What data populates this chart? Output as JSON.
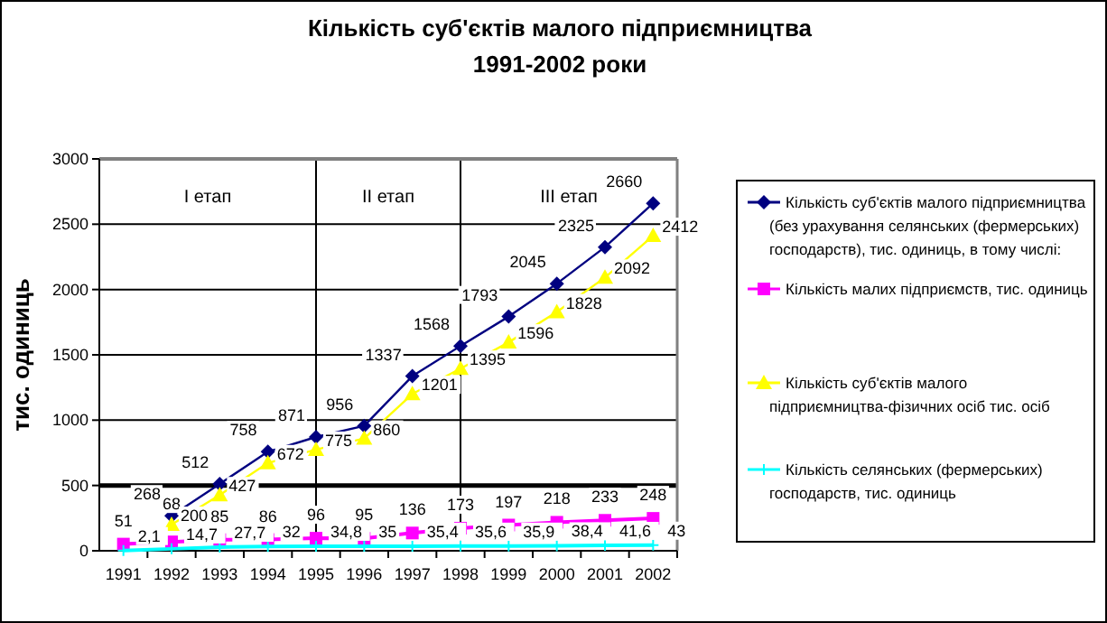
{
  "chart_data": {
    "type": "line",
    "title": "Кількість суб'єктів малого підприємництва\n1991-2002 роки",
    "ylabel": "тис. одиниць",
    "categories": [
      "1991",
      "1992",
      "1993",
      "1994",
      "1995",
      "1996",
      "1997",
      "1998",
      "1999",
      "2000",
      "2001",
      "2002"
    ],
    "ylim": [
      0,
      3000
    ],
    "yticks": [
      0,
      500,
      1000,
      1500,
      2000,
      2500,
      3000
    ],
    "grid": "y",
    "legend": "right",
    "ref_lines": [
      {
        "axis": "y",
        "value": 500
      },
      {
        "axis": "x",
        "value": "1995"
      },
      {
        "axis": "x",
        "value": "1998"
      }
    ],
    "annotations": [
      "I етап",
      "II етап",
      "III етап"
    ],
    "series": [
      {
        "name": "Кількість суб'єктів малого підприємництва (без урахування селянських (фермерських) господарств), тис. одиниць, в тому числі:",
        "color": "#000080",
        "marker": "diamond",
        "values": [
          null,
          268,
          512,
          758,
          871,
          956,
          1337,
          1568,
          1793,
          2045,
          2325,
          2660
        ],
        "value_labels": [
          null,
          "268",
          "512",
          "758",
          "871",
          "956",
          "1337",
          "1568",
          "1793",
          "2045",
          "2325",
          "2660"
        ]
      },
      {
        "name": "Кількість малих підприємств, тис. одиниць",
        "color": "#ff00ff",
        "marker": "square",
        "values": [
          51,
          68,
          85,
          86,
          96,
          95,
          136,
          173,
          197,
          218,
          233,
          248
        ],
        "value_labels": [
          "51",
          "68",
          "85",
          "86",
          "96",
          "95",
          "136",
          "173",
          "197",
          "218",
          "233",
          "248"
        ]
      },
      {
        "name": "Кількість суб'єктів малого підприємництва-фізичних осіб  тис. осіб",
        "color": "#ffff00",
        "marker": "triangle",
        "values": [
          null,
          200,
          427,
          672,
          775,
          860,
          1201,
          1395,
          1596,
          1828,
          2092,
          2412
        ],
        "value_labels": [
          null,
          "200",
          "427",
          "672",
          "775",
          "860",
          "1201",
          "1395",
          "1596",
          "1828",
          "2092",
          "2412"
        ]
      },
      {
        "name": "Кількість селянських (фермерських) господарств, тис. одиниць",
        "color": "#00ffff",
        "marker": "cross",
        "values": [
          2.1,
          14.7,
          27.7,
          32,
          34.8,
          35,
          35.4,
          35.6,
          35.9,
          38.4,
          41.6,
          43
        ],
        "value_labels": [
          "2,1",
          "14,7",
          "27,7",
          "32",
          "34,8",
          "35",
          "35,4",
          "35,6",
          "35,9",
          "38,4",
          "41,6",
          "43"
        ]
      }
    ]
  }
}
